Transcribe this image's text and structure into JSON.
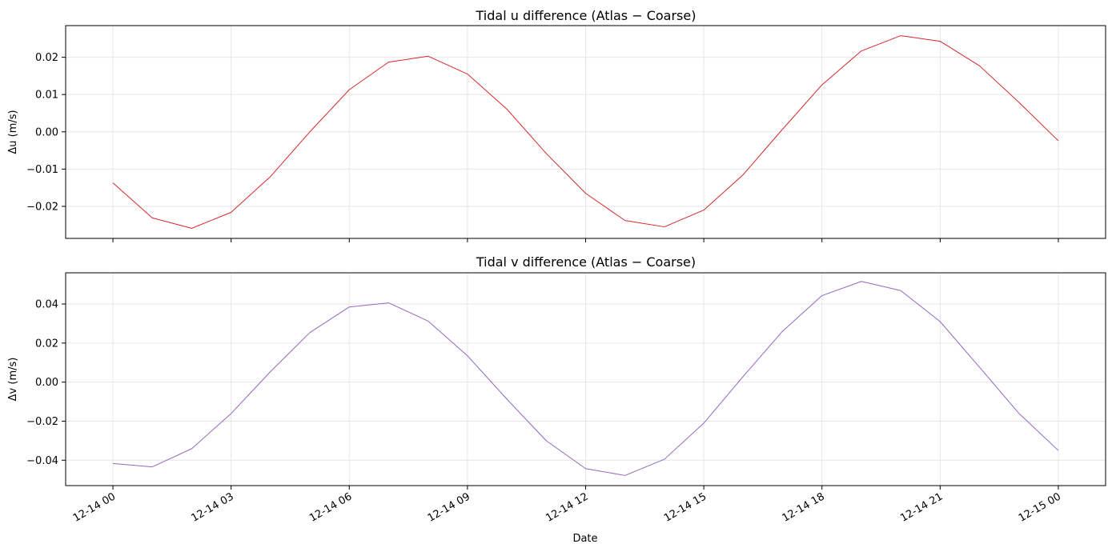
{
  "chart_data": [
    {
      "type": "line",
      "title": "Tidal u difference (Atlas − Coarse)",
      "xlabel": "",
      "ylabel": "Δu (m/s)",
      "color": "#d62728",
      "grid": true,
      "x": [
        "2024-12-14 00:00",
        "2024-12-14 01:00",
        "2024-12-14 02:00",
        "2024-12-14 03:00",
        "2024-12-14 04:00",
        "2024-12-14 05:00",
        "2024-12-14 06:00",
        "2024-12-14 07:00",
        "2024-12-14 08:00",
        "2024-12-14 09:00",
        "2024-12-14 10:00",
        "2024-12-14 11:00",
        "2024-12-14 12:00",
        "2024-12-14 13:00",
        "2024-12-14 14:00",
        "2024-12-14 15:00",
        "2024-12-14 16:00",
        "2024-12-14 17:00",
        "2024-12-14 18:00",
        "2024-12-14 19:00",
        "2024-12-14 20:00",
        "2024-12-14 21:00",
        "2024-12-14 22:00",
        "2024-12-14 23:00",
        "2024-12-15 00:00"
      ],
      "values": [
        -0.0137,
        -0.0231,
        -0.0259,
        -0.0216,
        -0.012,
        0.0,
        0.0113,
        0.0187,
        0.0203,
        0.0155,
        0.0061,
        -0.0058,
        -0.0165,
        -0.0238,
        -0.0255,
        -0.021,
        -0.0115,
        0.0007,
        0.0126,
        0.0217,
        0.0258,
        0.0243,
        0.0177,
        0.0079,
        -0.0024
      ],
      "ylim": [
        -0.0286,
        0.0285
      ],
      "yticks": [
        -0.02,
        -0.01,
        0.0,
        0.01,
        0.02
      ],
      "ytick_labels": [
        "−0.02",
        "−0.01",
        "0.00",
        "0.01",
        "0.02"
      ]
    },
    {
      "type": "line",
      "title": "Tidal v difference (Atlas − Coarse)",
      "xlabel": "Date",
      "ylabel": "Δv (m/s)",
      "color": "#9467bd",
      "grid": true,
      "x": [
        "2024-12-14 00:00",
        "2024-12-14 01:00",
        "2024-12-14 02:00",
        "2024-12-14 03:00",
        "2024-12-14 04:00",
        "2024-12-14 05:00",
        "2024-12-14 06:00",
        "2024-12-14 07:00",
        "2024-12-14 08:00",
        "2024-12-14 09:00",
        "2024-12-14 10:00",
        "2024-12-14 11:00",
        "2024-12-14 12:00",
        "2024-12-14 13:00",
        "2024-12-14 14:00",
        "2024-12-14 15:00",
        "2024-12-14 16:00",
        "2024-12-14 17:00",
        "2024-12-14 18:00",
        "2024-12-14 19:00",
        "2024-12-14 20:00",
        "2024-12-14 21:00",
        "2024-12-14 22:00",
        "2024-12-14 23:00",
        "2024-12-15 00:00"
      ],
      "values": [
        -0.0417,
        -0.0434,
        -0.0341,
        -0.0161,
        0.0054,
        0.0254,
        0.0385,
        0.0406,
        0.0313,
        0.0135,
        -0.0087,
        -0.03,
        -0.0443,
        -0.0478,
        -0.0395,
        -0.021,
        0.0029,
        0.0261,
        0.0443,
        0.0516,
        0.0469,
        0.031,
        0.0076,
        -0.016,
        -0.035
      ],
      "ylim": [
        -0.053,
        0.056
      ],
      "yticks": [
        -0.04,
        -0.02,
        0.0,
        0.02,
        0.04
      ],
      "ytick_labels": [
        "−0.04",
        "−0.02",
        "0.00",
        "0.02",
        "0.04"
      ]
    }
  ],
  "xaxis": {
    "tick_values": [
      0,
      3,
      6,
      9,
      12,
      15,
      18,
      21,
      24
    ],
    "tick_labels": [
      "12-14 00",
      "12-14 03",
      "12-14 06",
      "12-14 09",
      "12-14 12",
      "12-14 15",
      "12-14 18",
      "12-14 21",
      "12-15 00"
    ],
    "xlim_hours": [
      -1.2,
      25.2
    ]
  }
}
